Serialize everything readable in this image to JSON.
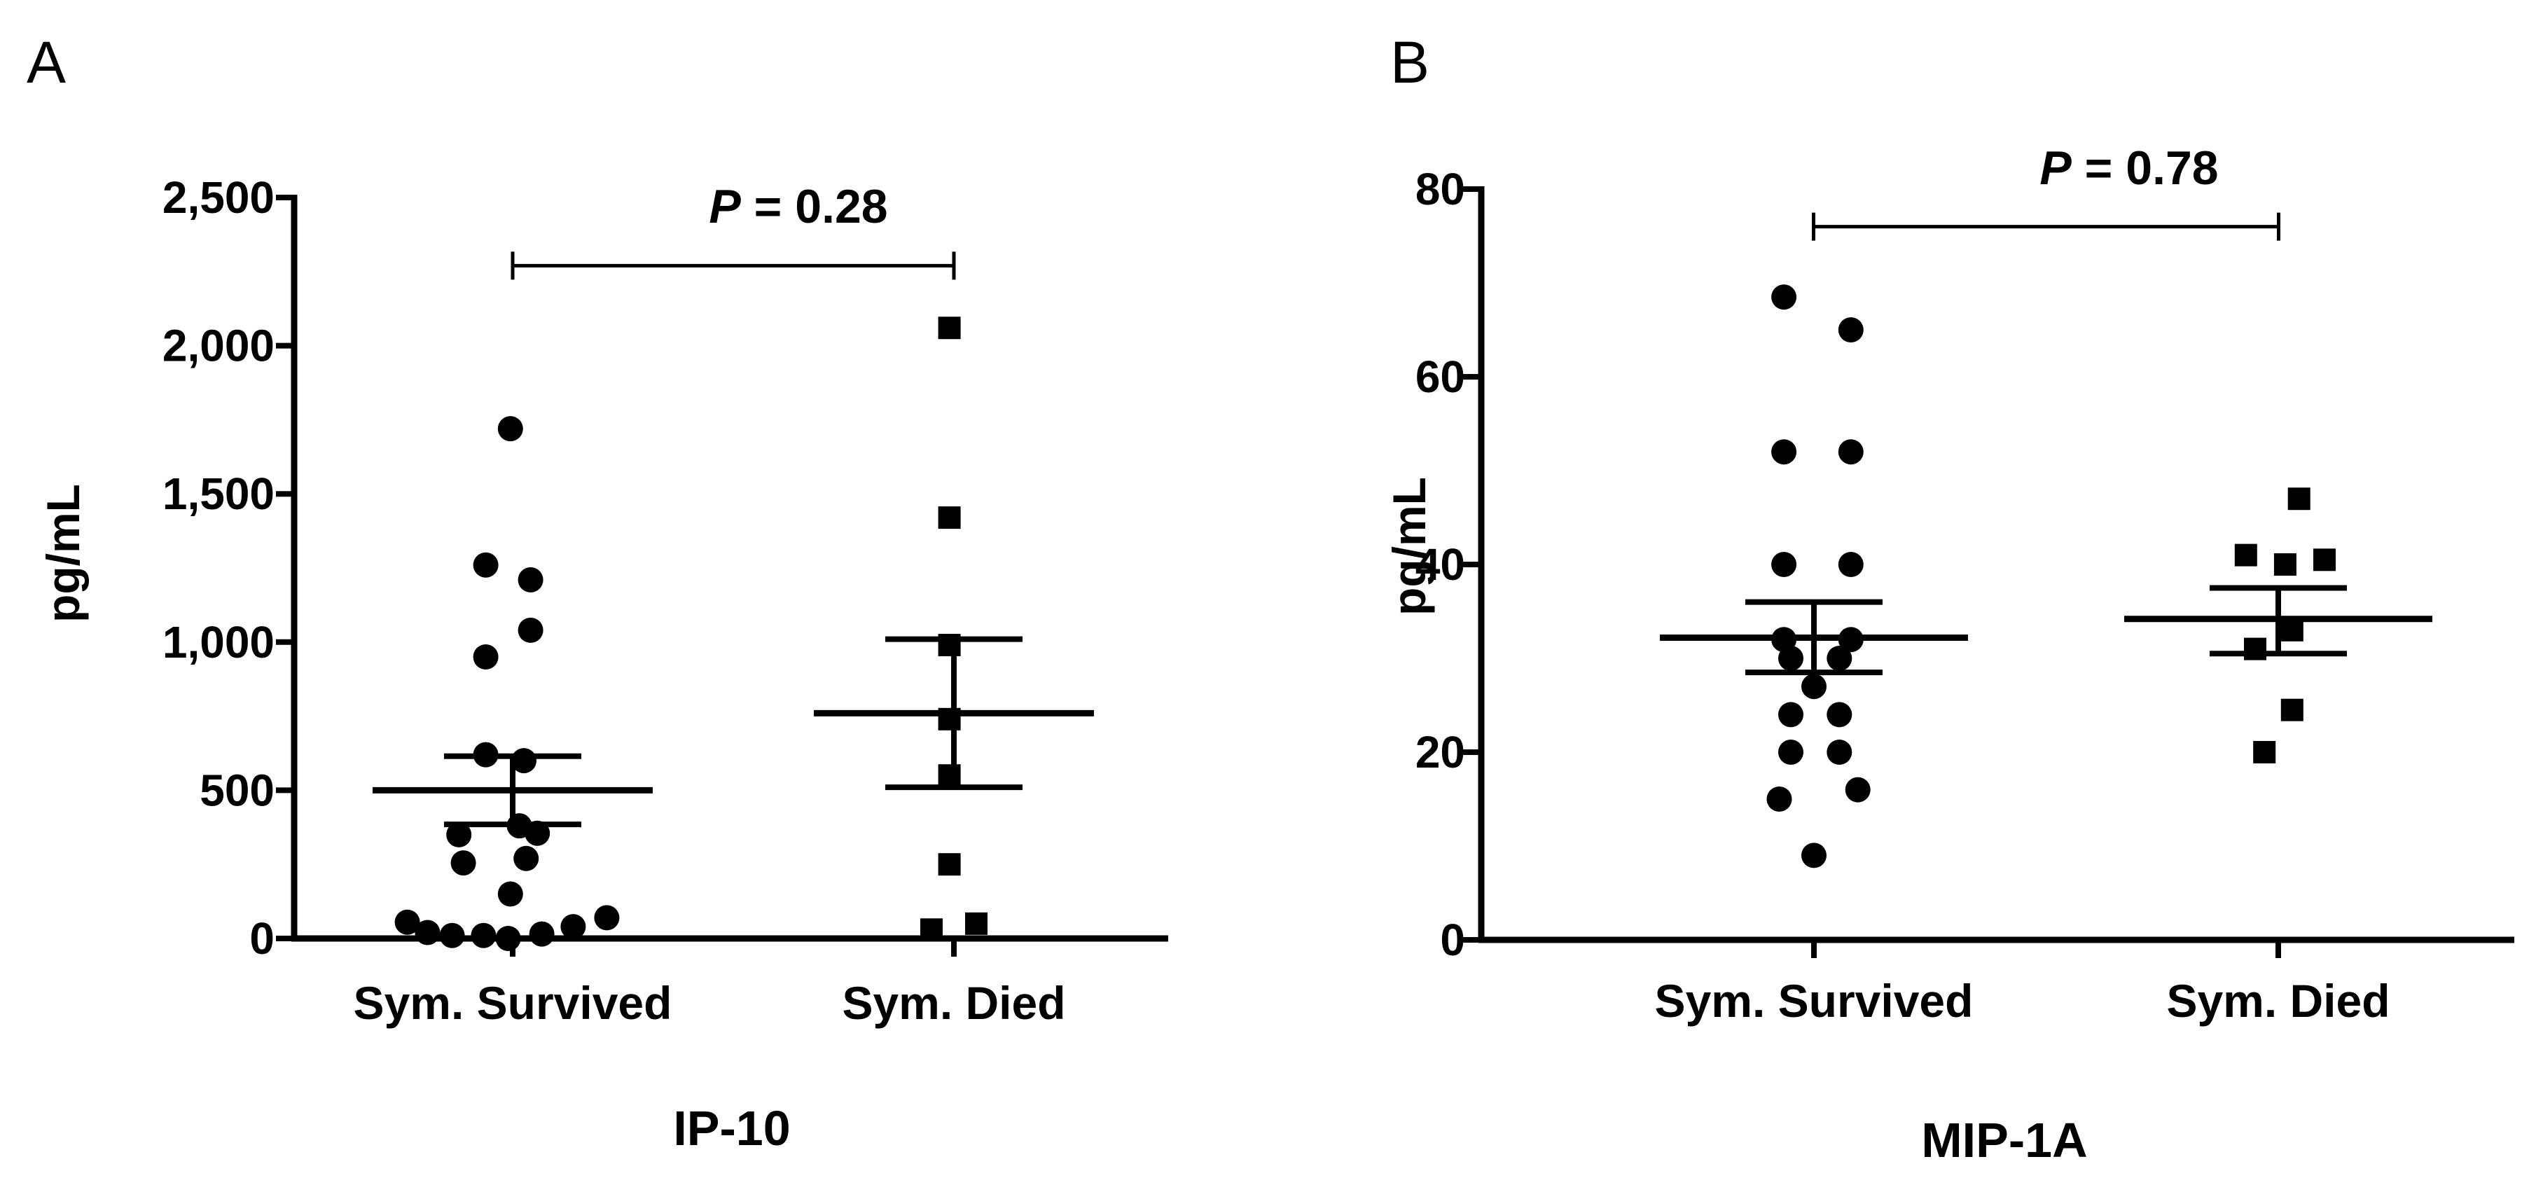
{
  "figure": {
    "panels": [
      "A",
      "B"
    ]
  },
  "chart_data": [
    {
      "panel": "A",
      "type": "scatter",
      "title": "IP-10",
      "xlabel": "",
      "ylabel": "pg/mL",
      "categories": [
        "Sym. Survived",
        "Sym. Died"
      ],
      "ylim": [
        0,
        2500
      ],
      "yticks": [
        0,
        500,
        1000,
        1500,
        2000,
        2500
      ],
      "ytick_labels": [
        "0",
        "500",
        "1,000",
        "1,500",
        "2,000",
        "2,500"
      ],
      "series": [
        {
          "name": "Sym. Survived",
          "marker": "circle",
          "points": [
            {
              "dx": -0.47,
              "value": 55
            },
            {
              "dx": -0.38,
              "value": 20
            },
            {
              "dx": -0.27,
              "value": 10
            },
            {
              "dx": -0.13,
              "value": 10
            },
            {
              "dx": -0.02,
              "value": 0
            },
            {
              "dx": 0.13,
              "value": 15
            },
            {
              "dx": 0.27,
              "value": 40
            },
            {
              "dx": 0.42,
              "value": 70
            },
            {
              "dx": -0.01,
              "value": 150
            },
            {
              "dx": -0.22,
              "value": 255
            },
            {
              "dx": 0.06,
              "value": 270
            },
            {
              "dx": -0.24,
              "value": 350
            },
            {
              "dx": 0.03,
              "value": 380
            },
            {
              "dx": 0.11,
              "value": 355
            },
            {
              "dx": -0.12,
              "value": 620
            },
            {
              "dx": 0.05,
              "value": 600
            },
            {
              "dx": -0.12,
              "value": 950
            },
            {
              "dx": 0.08,
              "value": 1040
            },
            {
              "dx": -0.12,
              "value": 1260
            },
            {
              "dx": 0.08,
              "value": 1210
            },
            {
              "dx": -0.01,
              "value": 1720
            }
          ],
          "mean": 500,
          "sem": [
            385,
            615
          ]
        },
        {
          "name": "Sym. Died",
          "marker": "square",
          "points": [
            {
              "dx": -0.1,
              "value": 30
            },
            {
              "dx": 0.1,
              "value": 50
            },
            {
              "dx": -0.02,
              "value": 250
            },
            {
              "dx": -0.02,
              "value": 550
            },
            {
              "dx": -0.02,
              "value": 740
            },
            {
              "dx": -0.02,
              "value": 990
            },
            {
              "dx": -0.02,
              "value": 1420
            },
            {
              "dx": -0.02,
              "value": 2060
            }
          ],
          "mean": 760,
          "sem": [
            510,
            1010
          ]
        }
      ],
      "annotations": [
        {
          "text_italic": "P",
          "text": " = 0.28",
          "bracket_value": 2270
        }
      ]
    },
    {
      "panel": "B",
      "type": "scatter",
      "title": "MIP-1A",
      "xlabel": "",
      "ylabel": "pg/mL",
      "categories": [
        "Sym. Survived",
        "Sym. Died"
      ],
      "ylim": [
        0,
        80
      ],
      "yticks": [
        0,
        20,
        40,
        60,
        80
      ],
      "ytick_labels": [
        "0",
        "20",
        "40",
        "60",
        "80"
      ],
      "series": [
        {
          "name": "Sym. Survived",
          "marker": "circle",
          "points": [
            {
              "dx": 0.0,
              "value": 9
            },
            {
              "dx": -0.15,
              "value": 15
            },
            {
              "dx": 0.19,
              "value": 16
            },
            {
              "dx": -0.1,
              "value": 20
            },
            {
              "dx": 0.11,
              "value": 20
            },
            {
              "dx": -0.1,
              "value": 24
            },
            {
              "dx": 0.11,
              "value": 24
            },
            {
              "dx": 0.0,
              "value": 27
            },
            {
              "dx": -0.1,
              "value": 30
            },
            {
              "dx": 0.11,
              "value": 30
            },
            {
              "dx": -0.13,
              "value": 32
            },
            {
              "dx": 0.16,
              "value": 32
            },
            {
              "dx": -0.13,
              "value": 40
            },
            {
              "dx": 0.16,
              "value": 40
            },
            {
              "dx": -0.13,
              "value": 52
            },
            {
              "dx": 0.16,
              "value": 52
            },
            {
              "dx": -0.13,
              "value": 68.5
            },
            {
              "dx": 0.16,
              "value": 65
            }
          ],
          "mean": 32.2,
          "sem": [
            28.5,
            36
          ]
        },
        {
          "name": "Sym. Died",
          "marker": "square",
          "points": [
            {
              "dx": -0.06,
              "value": 20
            },
            {
              "dx": 0.06,
              "value": 24.5
            },
            {
              "dx": -0.1,
              "value": 31
            },
            {
              "dx": 0.06,
              "value": 33
            },
            {
              "dx": -0.14,
              "value": 41
            },
            {
              "dx": 0.03,
              "value": 40
            },
            {
              "dx": 0.2,
              "value": 40.5
            },
            {
              "dx": 0.09,
              "value": 47
            }
          ],
          "mean": 34.2,
          "sem": [
            30.5,
            37.5
          ]
        }
      ],
      "annotations": [
        {
          "text_italic": "P",
          "text": " = 0.78",
          "bracket_value": 76
        }
      ]
    }
  ]
}
